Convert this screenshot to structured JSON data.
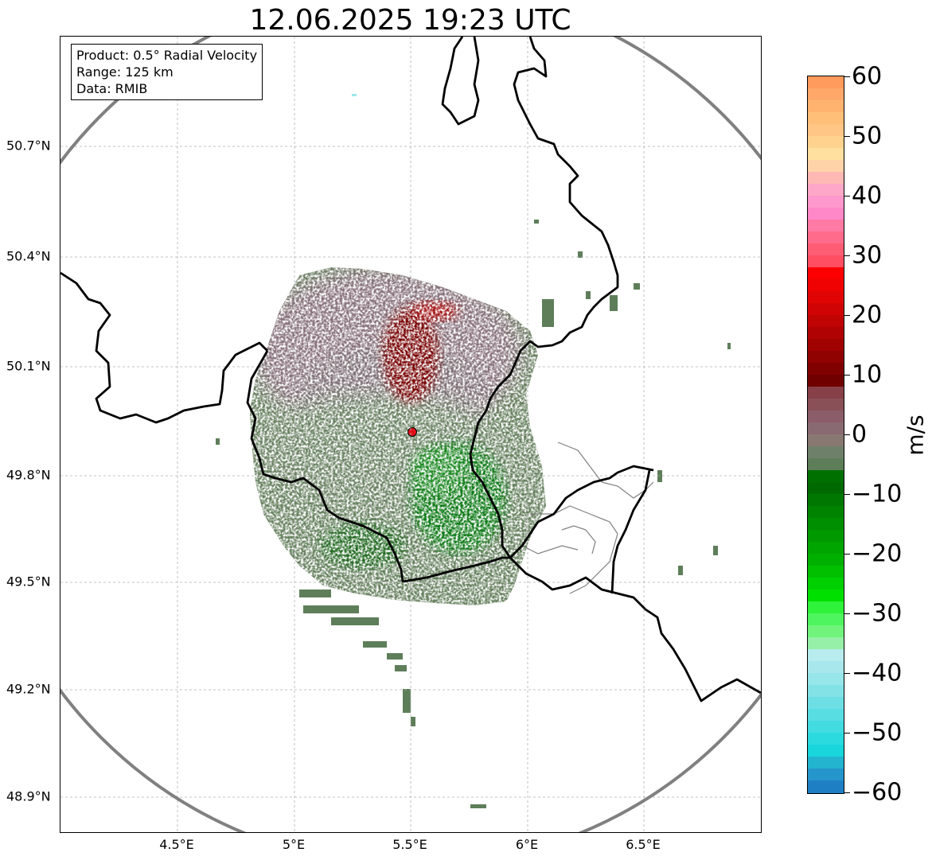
{
  "title": "12.06.2025 19:23 UTC",
  "info_box": {
    "product": "Product: 0.5° Radial Velocity",
    "range": "Range: 125 km",
    "data": "Data: RMIB"
  },
  "latitude_labels": [
    "50.7°N",
    "50.4°N",
    "50.1°N",
    "49.8°N",
    "49.5°N",
    "49.2°N",
    "48.9°N"
  ],
  "longitude_labels": [
    "4.5°E",
    "5°E",
    "5.5°E",
    "6°E",
    "6.5°E"
  ],
  "colorbar": {
    "unit": "m/s",
    "ticks": [
      "60",
      "50",
      "40",
      "30",
      "20",
      "10",
      "0",
      "−10",
      "−20",
      "−30",
      "−40",
      "−50",
      "−60"
    ],
    "min": -60,
    "max": 60
  },
  "colors": {
    "range_ring": "#808080",
    "border_line": "#000000",
    "gridline": "#b0b0b0",
    "radar_site": "#e0101a",
    "inbound_green": "#0a7a0a",
    "outbound_red": "#7a0000",
    "near_zero_olive": "#5e7e5a",
    "near_zero_mauve": "#8a6a72"
  }
}
